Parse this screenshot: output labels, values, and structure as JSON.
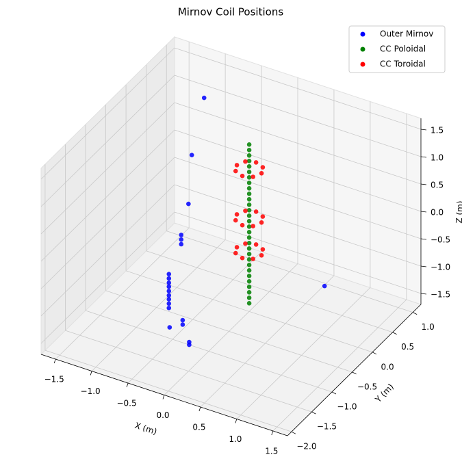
{
  "chart_data": {
    "type": "scatter3d",
    "title": "Mirnov Coil Positions",
    "xlabel": "X (m)",
    "ylabel": "Y (m)",
    "zlabel": "Z (m)",
    "xlim": [
      -1.7,
      1.7
    ],
    "ylim": [
      -2.1,
      1.2
    ],
    "zlim": [
      -1.7,
      1.7
    ],
    "xticks": [
      {
        "value": -1.5,
        "label": "−1.5"
      },
      {
        "value": -1.0,
        "label": "−1.0"
      },
      {
        "value": -0.5,
        "label": "−0.5"
      },
      {
        "value": 0,
        "label": "0.0"
      },
      0.5,
      {
        "value": 1.0,
        "label": "1.0"
      },
      1.5
    ],
    "yticks": [
      {
        "value": -2.0,
        "label": "−2.0"
      },
      {
        "value": -1.5,
        "label": "−1.5"
      },
      {
        "value": -1.0,
        "label": "−1.0"
      },
      {
        "value": -0.5,
        "label": "−0.5"
      },
      {
        "value": 0,
        "label": "0.0"
      },
      0.5,
      {
        "value": 1.0,
        "label": "1.0"
      }
    ],
    "zticks": [
      {
        "value": -1.5,
        "label": "−1.5"
      },
      {
        "value": -1.0,
        "label": "−1.0"
      },
      {
        "value": -0.5,
        "label": "−0.5"
      },
      {
        "value": 0,
        "label": "0.0"
      },
      0.5,
      {
        "value": 1.0,
        "label": "1.0"
      },
      1.5
    ],
    "grid": true,
    "legend": "upper right",
    "series": [
      {
        "name": "Outer Mirnov",
        "color": "#0000ff",
        "x": [
          -0.55,
          -0.55,
          -0.55,
          -0.55,
          -0.55,
          -0.55,
          -0.55,
          -0.55,
          -0.55,
          -0.38,
          -0.38,
          -0.38,
          -0.28,
          -0.54,
          -0.36,
          -0.36,
          -0.27,
          -0.27,
          -1.18,
          -1.35,
          1.04
        ],
        "y": [
          -1,
          -1,
          -1,
          -1,
          -1,
          -1,
          -1,
          -1,
          -1,
          -1,
          -1,
          -1,
          -1,
          -1,
          -1,
          -1,
          -1,
          -1,
          1,
          1,
          0
        ],
        "z": [
          -0.53,
          -0.61,
          -0.69,
          -0.76,
          -0.84,
          -0.92,
          -0.99,
          -1.07,
          -1.15,
          0.26,
          0.175,
          0.09,
          0.87,
          -1.5,
          -1.29,
          -1.37,
          -1.65,
          -1.7,
          0.96,
          -0.16,
          -0.78
        ]
      },
      {
        "name": "CC Poloidal",
        "color": "#008000",
        "x": [
          0,
          0,
          0,
          0,
          0,
          0,
          0,
          0,
          0,
          0,
          0,
          0,
          0,
          0,
          0,
          0,
          0,
          0,
          0,
          0,
          0,
          0,
          0,
          0,
          0,
          0,
          0,
          0,
          0,
          0
        ],
        "y": [
          0,
          0,
          0,
          0,
          0,
          0,
          0,
          0,
          0,
          0,
          0,
          0,
          0,
          0,
          0,
          0,
          0,
          0,
          0,
          0,
          0,
          0,
          0,
          0,
          0,
          0,
          0,
          0,
          0,
          0
        ],
        "z": [
          -1.55,
          -1.45,
          -1.35,
          -1.25,
          -1.15,
          -1.05,
          -0.95,
          -0.85,
          -0.75,
          -0.65,
          -0.55,
          -0.45,
          -0.35,
          -0.25,
          -0.15,
          -0.05,
          0.05,
          0.15,
          0.25,
          0.35,
          0.45,
          0.55,
          0.65,
          0.75,
          0.85,
          0.95,
          1.05,
          1.15,
          1.25,
          1.35
        ]
      },
      {
        "name": "CC Toroidal",
        "color": "#ff0000",
        "x": [
          0.17,
          0.12,
          0,
          -0.12,
          -0.17,
          -0.12,
          0,
          0.12,
          0.17,
          0.12,
          0,
          -0.12,
          -0.17,
          -0.12,
          0,
          0.12,
          0.17,
          0.12,
          0,
          -0.12,
          -0.17,
          -0.12,
          0,
          0.12
        ],
        "y": [
          0,
          0.12,
          0.17,
          0.12,
          0,
          -0.12,
          -0.17,
          -0.12,
          0,
          0.12,
          0.17,
          0.12,
          0,
          -0.12,
          -0.17,
          -0.12,
          0,
          0.12,
          0.17,
          0.12,
          0,
          -0.12,
          -0.17,
          -0.12
        ],
        "z": [
          0.9,
          0.9,
          0.9,
          0.9,
          0.9,
          0.9,
          0.9,
          0.9,
          0,
          0,
          0,
          0,
          0,
          0,
          0,
          0,
          -0.6,
          -0.6,
          -0.6,
          -0.6,
          -0.6,
          -0.6,
          -0.6,
          -0.6
        ]
      }
    ]
  }
}
